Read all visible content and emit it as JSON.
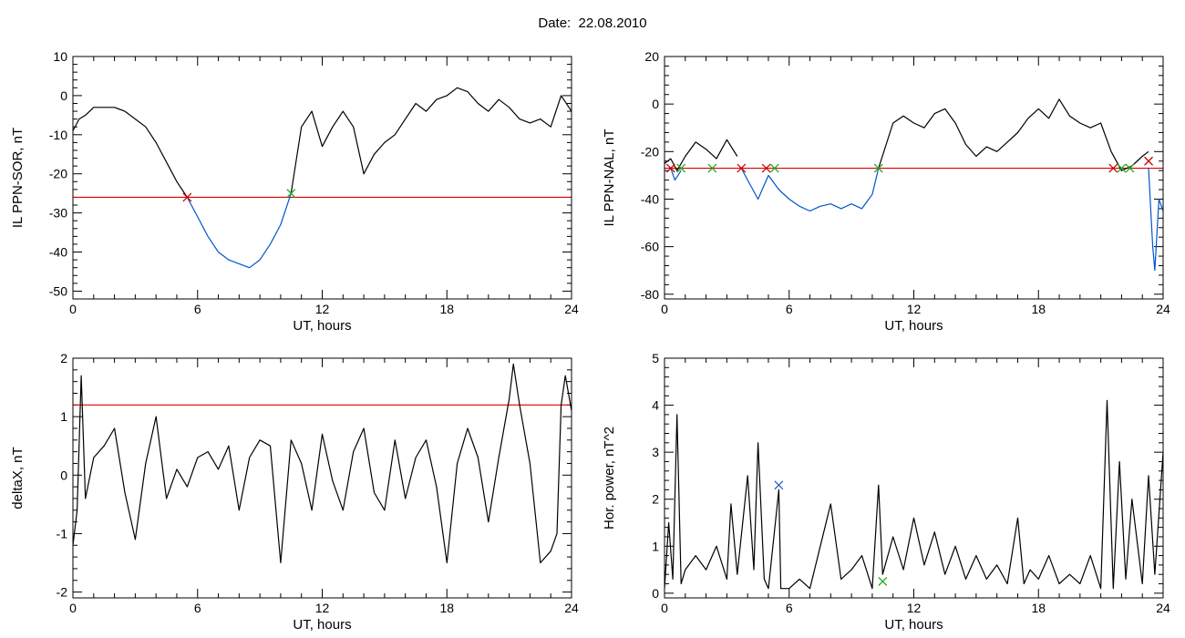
{
  "page": {
    "title": "Date:  22.08.2010"
  },
  "chart_data": [
    {
      "type": "line",
      "xlabel": "UT, hours",
      "ylabel": "IL PPN-SOR, nT",
      "xlim": [
        0,
        24
      ],
      "ylim": [
        -52,
        10
      ],
      "xticks": [
        0,
        6,
        12,
        18,
        24
      ],
      "yticks": [
        10,
        0,
        -10,
        -20,
        -30,
        -40,
        -50
      ],
      "threshold": -26,
      "series": [
        {
          "color": "#000000",
          "x": [
            0,
            0.3,
            0.6,
            1,
            1.5,
            2,
            2.5,
            3,
            3.5,
            4,
            4.5,
            5,
            5.5
          ],
          "y": [
            -9,
            -6,
            -5,
            -3,
            -3,
            -3,
            -4,
            -6,
            -8,
            -12,
            -17,
            -22,
            -26
          ]
        },
        {
          "color": "#0055cc",
          "x": [
            5.5,
            6,
            6.5,
            7,
            7.5,
            8,
            8.5,
            9,
            9.5,
            10,
            10.5
          ],
          "y": [
            -26,
            -31,
            -36,
            -40,
            -42,
            -43,
            -44,
            -42,
            -38,
            -33,
            -25
          ]
        },
        {
          "color": "#000000",
          "x": [
            10.5,
            11,
            11.5,
            12,
            12.5,
            13,
            13.5,
            14,
            14.5,
            15,
            15.5,
            16,
            16.5,
            17,
            17.5,
            18,
            18.5,
            19,
            19.5,
            20,
            20.5,
            21,
            21.5,
            22,
            22.5,
            23,
            23.5,
            24
          ],
          "y": [
            -25,
            -8,
            -4,
            -13,
            -8,
            -4,
            -8,
            -20,
            -15,
            -12,
            -10,
            -6,
            -2,
            -4,
            -1,
            0,
            2,
            1,
            -2,
            -4,
            -1,
            -3,
            -6,
            -7,
            -6,
            -8,
            0,
            -4
          ]
        }
      ],
      "markers": [
        {
          "x": 5.5,
          "y": -26,
          "color": "#cc0000"
        },
        {
          "x": 10.5,
          "y": -25,
          "color": "#22aa22"
        }
      ]
    },
    {
      "type": "line",
      "xlabel": "UT, hours",
      "ylabel": "IL PPN-NAL, nT",
      "xlim": [
        0,
        24
      ],
      "ylim": [
        -82,
        20
      ],
      "xticks": [
        0,
        6,
        12,
        18,
        24
      ],
      "yticks": [
        20,
        0,
        -20,
        -40,
        -60,
        -80
      ],
      "threshold": -27,
      "series": [
        {
          "color": "#000000",
          "x": [
            0,
            0.3,
            0.6,
            1,
            1.5,
            2,
            2.5,
            3,
            3.5
          ],
          "y": [
            -25,
            -23,
            -28,
            -22,
            -16,
            -19,
            -23,
            -15,
            -22
          ]
        },
        {
          "color": "#0055cc",
          "x": [
            0.3,
            0.5,
            0.8
          ],
          "y": [
            -27,
            -32,
            -28
          ]
        },
        {
          "color": "#0055cc",
          "x": [
            3.7,
            4,
            4.5,
            5,
            5.5,
            6,
            6.5,
            7,
            7.5,
            8,
            8.5,
            9,
            9.5,
            10,
            10.3
          ],
          "y": [
            -27,
            -32,
            -40,
            -30,
            -36,
            -40,
            -43,
            -45,
            -43,
            -42,
            -44,
            -42,
            -44,
            -38,
            -27
          ]
        },
        {
          "color": "#000000",
          "x": [
            10.3,
            11,
            11.5,
            12,
            12.5,
            13,
            13.5,
            14,
            14.5,
            15,
            15.5,
            16,
            16.5,
            17,
            17.5,
            18,
            18.5,
            19,
            19.5,
            20,
            20.5,
            21,
            21.5,
            22,
            22.5,
            23,
            23.3
          ],
          "y": [
            -27,
            -8,
            -5,
            -8,
            -10,
            -4,
            -2,
            -8,
            -17,
            -22,
            -18,
            -20,
            -16,
            -12,
            -6,
            -2,
            -6,
            2,
            -5,
            -8,
            -10,
            -8,
            -20,
            -28,
            -26,
            -22,
            -20
          ]
        },
        {
          "color": "#0055cc",
          "x": [
            23.3,
            23.5,
            23.6,
            23.8,
            24
          ],
          "y": [
            -27,
            -60,
            -70,
            -40,
            -45
          ]
        }
      ],
      "markers": [
        {
          "x": 0.3,
          "y": -27,
          "color": "#cc0000"
        },
        {
          "x": 0.8,
          "y": -27,
          "color": "#22aa22"
        },
        {
          "x": 2.3,
          "y": -27,
          "color": "#22aa22"
        },
        {
          "x": 3.7,
          "y": -27,
          "color": "#cc0000"
        },
        {
          "x": 4.9,
          "y": -27,
          "color": "#cc0000"
        },
        {
          "x": 5.3,
          "y": -27,
          "color": "#22aa22"
        },
        {
          "x": 10.3,
          "y": -27,
          "color": "#22aa22"
        },
        {
          "x": 21.6,
          "y": -27,
          "color": "#cc0000"
        },
        {
          "x": 22.0,
          "y": -27,
          "color": "#22aa22"
        },
        {
          "x": 22.4,
          "y": -27,
          "color": "#22aa22"
        },
        {
          "x": 23.3,
          "y": -24,
          "color": "#cc0000"
        }
      ]
    },
    {
      "type": "line",
      "xlabel": "UT, hours",
      "ylabel": "deltaX, nT",
      "xlim": [
        0,
        24
      ],
      "ylim": [
        -2.1,
        2
      ],
      "xticks": [
        0,
        6,
        12,
        18,
        24
      ],
      "yticks": [
        2,
        1,
        0,
        -1,
        -2
      ],
      "threshold": 1.2,
      "series": [
        {
          "color": "#000000",
          "x": [
            0,
            0.2,
            0.4,
            0.6,
            1,
            1.5,
            2,
            2.5,
            3,
            3.5,
            4,
            4.5,
            5,
            5.5,
            6,
            6.5,
            7,
            7.5,
            8,
            8.5,
            9,
            9.5,
            10,
            10.5,
            11,
            11.5,
            12,
            12.5,
            13,
            13.5,
            14,
            14.5,
            15,
            15.5,
            16,
            16.5,
            17,
            17.5,
            18,
            18.5,
            19,
            19.5,
            20,
            20.5,
            21,
            21.2,
            21.5,
            22,
            22.5,
            23,
            23.3,
            23.5,
            23.7,
            24
          ],
          "y": [
            -1.2,
            -0.6,
            1.7,
            -0.4,
            0.3,
            0.5,
            0.8,
            -0.3,
            -1.1,
            0.2,
            1.0,
            -0.4,
            0.1,
            -0.2,
            0.3,
            0.4,
            0.1,
            0.5,
            -0.6,
            0.3,
            0.6,
            0.5,
            -1.5,
            0.6,
            0.2,
            -0.6,
            0.7,
            -0.1,
            -0.6,
            0.4,
            0.8,
            -0.3,
            -0.6,
            0.6,
            -0.4,
            0.3,
            0.6,
            -0.2,
            -1.5,
            0.2,
            0.8,
            0.3,
            -0.8,
            0.3,
            1.3,
            1.9,
            1.2,
            0.2,
            -1.5,
            -1.3,
            -1.0,
            1.2,
            1.7,
            1.1
          ]
        }
      ],
      "markers": []
    },
    {
      "type": "line",
      "xlabel": "UT, hours",
      "ylabel": "Hor. power, nT^2",
      "xlim": [
        0,
        24
      ],
      "ylim": [
        -0.1,
        5
      ],
      "xticks": [
        0,
        6,
        12,
        18,
        24
      ],
      "yticks": [
        5,
        4,
        3,
        2,
        1,
        0
      ],
      "series": [
        {
          "color": "#000000",
          "x": [
            0,
            0.2,
            0.4,
            0.6,
            0.8,
            1,
            1.5,
            2,
            2.5,
            3,
            3.2,
            3.5,
            4,
            4.3,
            4.5,
            4.8,
            5,
            5.5,
            5.6,
            6,
            6.5,
            7,
            7.5,
            8,
            8.5,
            9,
            9.5,
            10,
            10.3,
            10.5,
            11,
            11.5,
            12,
            12.5,
            13,
            13.5,
            14,
            14.5,
            15,
            15.5,
            16,
            16.5,
            17,
            17.3,
            17.6,
            18,
            18.5,
            19,
            19.5,
            20,
            20.5,
            21,
            21.3,
            21.6,
            21.9,
            22.2,
            22.5,
            23,
            23.3,
            23.6,
            24
          ],
          "y": [
            0.1,
            1.5,
            0.3,
            3.8,
            0.2,
            0.5,
            0.8,
            0.5,
            1.0,
            0.3,
            1.9,
            0.4,
            2.5,
            0.5,
            3.2,
            0.3,
            0.1,
            2.2,
            0.1,
            0.1,
            0.3,
            0.1,
            1.0,
            1.9,
            0.3,
            0.5,
            0.8,
            0.1,
            2.3,
            0.4,
            1.2,
            0.5,
            1.6,
            0.6,
            1.3,
            0.4,
            1.0,
            0.3,
            0.8,
            0.3,
            0.6,
            0.2,
            1.6,
            0.2,
            0.5,
            0.3,
            0.8,
            0.2,
            0.4,
            0.2,
            0.8,
            0.1,
            4.1,
            0.1,
            2.8,
            0.3,
            2.0,
            0.2,
            2.5,
            0.4,
            3.0
          ]
        }
      ],
      "markers": [
        {
          "x": 5.5,
          "y": 2.3,
          "color": "#3366cc"
        },
        {
          "x": 10.5,
          "y": 0.25,
          "color": "#22aa22"
        }
      ]
    }
  ]
}
